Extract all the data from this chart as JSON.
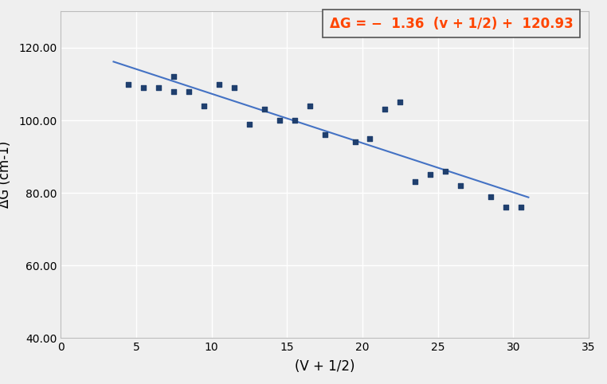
{
  "x_data": [
    4.5,
    5.5,
    6.5,
    7.5,
    7.5,
    8.5,
    9.5,
    10.5,
    11.5,
    12.5,
    13.5,
    14.5,
    15.5,
    16.5,
    17.5,
    19.5,
    20.5,
    21.5,
    22.5,
    23.5,
    24.5,
    25.5,
    26.5,
    28.5,
    29.5,
    30.5
  ],
  "y_data": [
    110,
    109,
    109,
    108,
    112,
    108,
    104,
    110,
    109,
    99,
    103,
    100,
    100,
    104,
    96,
    94,
    95,
    103,
    105,
    83,
    85,
    86,
    82,
    79,
    76,
    76
  ],
  "slope": -1.36,
  "intercept": 120.93,
  "line_x_start": 3.5,
  "line_x_end": 31.0,
  "xlabel": "(V + 1/2)",
  "ylabel": "ΔG (cm-1)",
  "xlim": [
    0,
    35
  ],
  "ylim": [
    40,
    130
  ],
  "yticks": [
    40.0,
    60.0,
    80.0,
    100.0,
    120.0
  ],
  "xticks": [
    0,
    5,
    10,
    15,
    20,
    25,
    30,
    35
  ],
  "marker_color": "#1f3f6e",
  "line_color": "#4472c4",
  "equation_color": "#ff4500",
  "box_edge_color": "#555555",
  "background_color": "#efefef",
  "grid_color": "#ffffff",
  "title_color": "#4472c4"
}
